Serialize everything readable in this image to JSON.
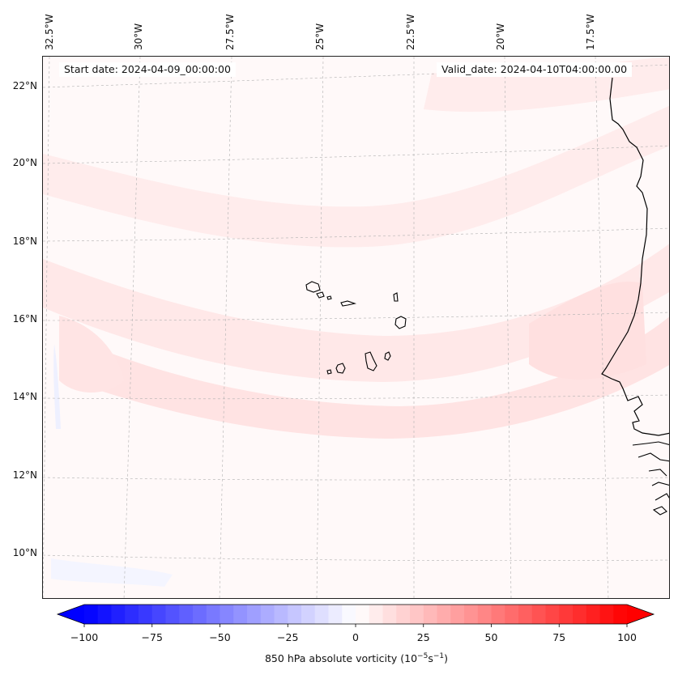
{
  "map": {
    "start_label": "Start date: 2024-04-09_00:00:00",
    "valid_label": "Valid_date: 2024-04-10T04:00:00.00",
    "lon_labels": [
      "32.5°W",
      "30°W",
      "27.5°W",
      "25°W",
      "22.5°W",
      "20°W",
      "17.5°W"
    ],
    "lat_labels": [
      "22°N",
      "20°N",
      "18°N",
      "16°N",
      "14°N",
      "12°N",
      "10°N"
    ],
    "field": "850 hPa absolute vorticity"
  },
  "colorbar": {
    "label_text": "850 hPa absolute vorticity (10",
    "label_exp1": "−5",
    "label_mid": "s",
    "label_exp2": "−1",
    "label_end": ")",
    "ticks": [
      "−100",
      "−75",
      "−50",
      "−25",
      "0",
      "25",
      "50",
      "75",
      "100"
    ],
    "min": -100,
    "max": 100,
    "levels": 40,
    "neg_color": "#0000ff",
    "pos_color": "#ff0000"
  },
  "colors": {
    "background": "#fff9f9",
    "band_light": "#ffeaea",
    "band_mid": "#ffdada",
    "blue_patch": "#eef0ff",
    "coast": "#000000",
    "grid": "#b0b0b0"
  }
}
